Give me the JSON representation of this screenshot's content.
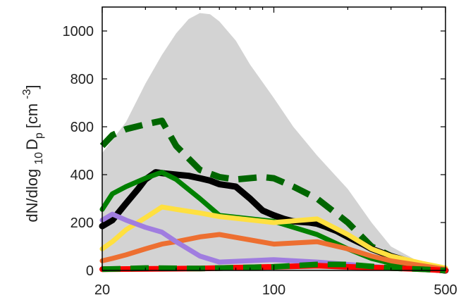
{
  "chart_data": {
    "type": "line",
    "xscale": "log",
    "xlim": [
      20,
      500
    ],
    "ylim": [
      0,
      1100
    ],
    "xticks": [
      20,
      100,
      500
    ],
    "xtick_labels": [
      "20",
      "100",
      "500"
    ],
    "yticks": [
      0,
      200,
      400,
      600,
      800,
      1000
    ],
    "ytick_labels": [
      "0",
      "200",
      "400",
      "600",
      "800",
      "1000"
    ],
    "ylabel": {
      "main": "dN/dlog",
      "sub1": "10",
      "mid": "D",
      "sub2": "p",
      "unit_open": "[cm",
      "sup": "-3",
      "unit_close": "]"
    },
    "xlabel": "",
    "title": "",
    "grid": false,
    "legend": "none",
    "envelope": {
      "color": "#d3d3d3",
      "upper": [
        [
          20,
          490
        ],
        [
          25,
          620
        ],
        [
          30,
          780
        ],
        [
          35,
          900
        ],
        [
          40,
          990
        ],
        [
          45,
          1050
        ],
        [
          50,
          1075
        ],
        [
          55,
          1070
        ],
        [
          60,
          1040
        ],
        [
          70,
          960
        ],
        [
          80,
          860
        ],
        [
          100,
          720
        ],
        [
          120,
          600
        ],
        [
          150,
          480
        ],
        [
          200,
          340
        ],
        [
          250,
          200
        ],
        [
          300,
          100
        ],
        [
          400,
          30
        ],
        [
          500,
          10
        ]
      ],
      "lower": [
        [
          20,
          0
        ],
        [
          500,
          0
        ]
      ]
    },
    "series": [
      {
        "color": "#006600",
        "style": "dashed",
        "width": 9,
        "values": [
          [
            20,
            520
          ],
          [
            22,
            565
          ],
          [
            25,
            590
          ],
          [
            30,
            610
          ],
          [
            35,
            625
          ],
          [
            40,
            520
          ],
          [
            50,
            420
          ],
          [
            60,
            390
          ],
          [
            70,
            380
          ],
          [
            90,
            390
          ],
          [
            100,
            385
          ],
          [
            120,
            350
          ],
          [
            150,
            300
          ],
          [
            200,
            200
          ],
          [
            250,
            100
          ],
          [
            300,
            60
          ],
          [
            400,
            10
          ],
          [
            500,
            0
          ]
        ]
      },
      {
        "color": "#000000",
        "style": "solid",
        "width": 9,
        "values": [
          [
            20,
            185
          ],
          [
            22,
            210
          ],
          [
            25,
            280
          ],
          [
            28,
            340
          ],
          [
            30,
            380
          ],
          [
            33,
            410
          ],
          [
            36,
            405
          ],
          [
            40,
            400
          ],
          [
            45,
            395
          ],
          [
            50,
            385
          ],
          [
            55,
            375
          ],
          [
            60,
            360
          ],
          [
            65,
            355
          ],
          [
            70,
            350
          ],
          [
            80,
            300
          ],
          [
            90,
            250
          ],
          [
            100,
            230
          ],
          [
            110,
            215
          ],
          [
            120,
            205
          ],
          [
            140,
            200
          ],
          [
            150,
            195
          ],
          [
            160,
            185
          ],
          [
            180,
            165
          ],
          [
            200,
            140
          ],
          [
            230,
            110
          ],
          [
            250,
            90
          ],
          [
            300,
            60
          ],
          [
            350,
            40
          ],
          [
            400,
            15
          ],
          [
            450,
            5
          ],
          [
            500,
            0
          ]
        ]
      },
      {
        "color": "#008000",
        "style": "solid",
        "width": 7,
        "values": [
          [
            20,
            255
          ],
          [
            22,
            320
          ],
          [
            25,
            350
          ],
          [
            30,
            385
          ],
          [
            35,
            410
          ],
          [
            40,
            380
          ],
          [
            50,
            300
          ],
          [
            60,
            230
          ],
          [
            90,
            210
          ],
          [
            100,
            205
          ],
          [
            150,
            150
          ],
          [
            200,
            90
          ],
          [
            250,
            50
          ],
          [
            300,
            30
          ],
          [
            400,
            10
          ],
          [
            500,
            0
          ]
        ]
      },
      {
        "color": "#ffe040",
        "style": "solid",
        "width": 7,
        "values": [
          [
            20,
            90
          ],
          [
            22,
            120
          ],
          [
            25,
            170
          ],
          [
            30,
            220
          ],
          [
            35,
            265
          ],
          [
            40,
            255
          ],
          [
            50,
            240
          ],
          [
            60,
            225
          ],
          [
            100,
            200
          ],
          [
            150,
            215
          ],
          [
            200,
            150
          ],
          [
            250,
            90
          ],
          [
            300,
            60
          ],
          [
            400,
            30
          ],
          [
            500,
            10
          ]
        ]
      },
      {
        "color": "#ed6f31",
        "style": "solid",
        "width": 7,
        "values": [
          [
            20,
            40
          ],
          [
            22,
            50
          ],
          [
            25,
            65
          ],
          [
            30,
            90
          ],
          [
            35,
            110
          ],
          [
            40,
            120
          ],
          [
            50,
            140
          ],
          [
            60,
            150
          ],
          [
            100,
            110
          ],
          [
            150,
            120
          ],
          [
            200,
            90
          ],
          [
            250,
            60
          ],
          [
            300,
            40
          ],
          [
            400,
            20
          ],
          [
            500,
            5
          ]
        ]
      },
      {
        "color": "#a07de0",
        "style": "solid",
        "width": 7,
        "values": [
          [
            20,
            210
          ],
          [
            22,
            235
          ],
          [
            25,
            210
          ],
          [
            30,
            180
          ],
          [
            35,
            160
          ],
          [
            40,
            120
          ],
          [
            50,
            60
          ],
          [
            60,
            35
          ],
          [
            100,
            45
          ],
          [
            150,
            35
          ],
          [
            200,
            25
          ],
          [
            300,
            10
          ],
          [
            400,
            5
          ],
          [
            500,
            0
          ]
        ]
      },
      {
        "color": "#ff0000",
        "style": "solid",
        "width": 8,
        "values": [
          [
            20,
            5
          ],
          [
            50,
            8
          ],
          [
            100,
            15
          ],
          [
            150,
            20
          ],
          [
            200,
            15
          ],
          [
            300,
            10
          ],
          [
            400,
            5
          ],
          [
            500,
            0
          ]
        ]
      },
      {
        "color": "#008000",
        "style": "dashed",
        "width": 8,
        "values": [
          [
            20,
            5
          ],
          [
            30,
            10
          ],
          [
            50,
            8
          ],
          [
            100,
            15
          ],
          [
            150,
            25
          ],
          [
            200,
            25
          ],
          [
            300,
            10
          ],
          [
            400,
            5
          ],
          [
            500,
            0
          ]
        ]
      }
    ]
  }
}
